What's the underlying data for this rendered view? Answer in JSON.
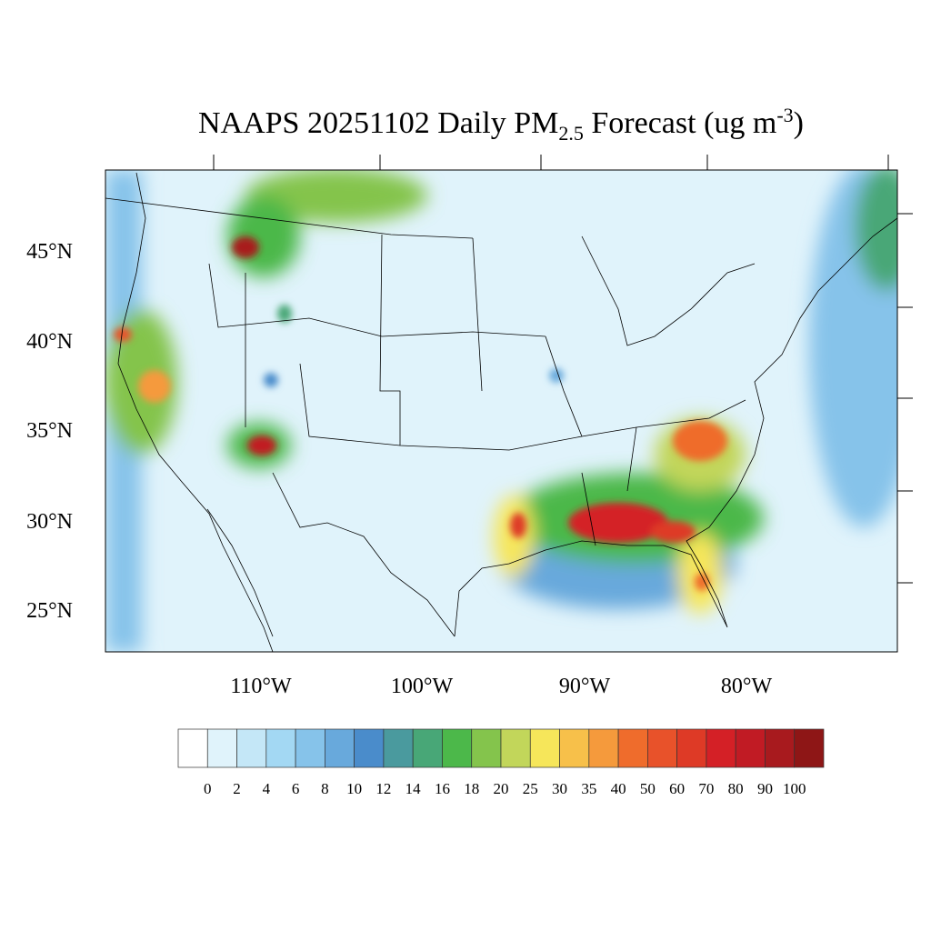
{
  "title": {
    "main": "NAAPS 20251102 Daily PM",
    "sub": "2.5",
    "rest": " Forecast (ug m",
    "sup": "-3",
    "end": ")"
  },
  "lat_labels": [
    "45°N",
    "40°N",
    "35°N",
    "30°N",
    "25°N"
  ],
  "lon_labels": [
    "110°W",
    "100°W",
    "90°W",
    "80°W"
  ],
  "colorbar": {
    "labels": [
      "0",
      "2",
      "4",
      "6",
      "8",
      "10",
      "12",
      "14",
      "16",
      "18",
      "20",
      "25",
      "30",
      "35",
      "40",
      "50",
      "60",
      "70",
      "80",
      "90",
      "100"
    ],
    "colors": [
      "#ffffff",
      "#e0f3fb",
      "#c4e7f7",
      "#a3d8f3",
      "#86c3ea",
      "#68a9dc",
      "#4a8ccb",
      "#4a9a9e",
      "#48a777",
      "#4cb84a",
      "#84c44c",
      "#c2d65a",
      "#f6e65a",
      "#f7c04a",
      "#f59a3c",
      "#ef6c2c",
      "#e8522a",
      "#de3a26",
      "#d42026",
      "#c11b24",
      "#a81a1e",
      "#8e1616"
    ]
  }
}
